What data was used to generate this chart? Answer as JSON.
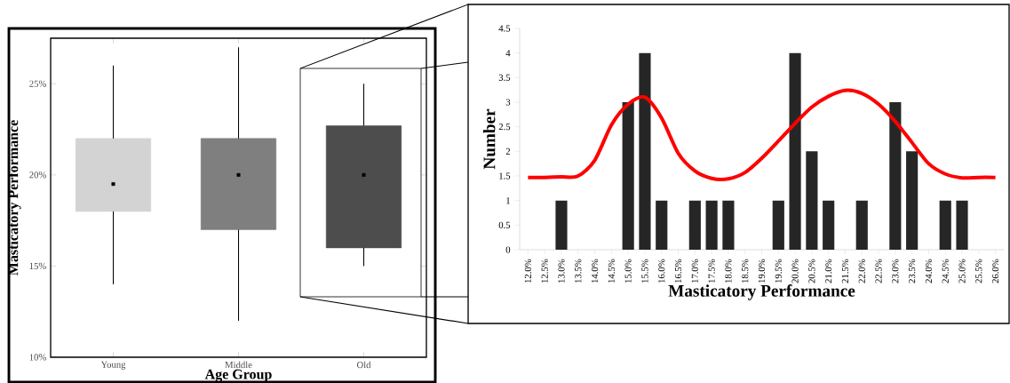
{
  "chart_data": [
    {
      "type": "box",
      "xlabel": "Age Group",
      "ylabel": "Masticatory Performance",
      "categories": [
        "Young",
        "Middle",
        "Old"
      ],
      "colors": [
        "#d3d3d3",
        "#7f7f7f",
        "#4d4d4d"
      ],
      "boxes": [
        {
          "low": 14,
          "q1": 18,
          "median": 19.5,
          "q3": 22,
          "high": 26
        },
        {
          "low": 12,
          "q1": 17,
          "median": 20,
          "q3": 22,
          "high": 27
        },
        {
          "low": 15,
          "q1": 16,
          "median": 20,
          "q3": 22.7,
          "high": 25
        }
      ],
      "ylim": [
        10,
        27.5
      ],
      "yticks": [
        {
          "value": 10,
          "label": "10%"
        },
        {
          "value": 15,
          "label": "15%"
        },
        {
          "value": 20,
          "label": "20%"
        },
        {
          "value": 25,
          "label": "25%"
        }
      ]
    },
    {
      "type": "bar",
      "xlabel": "Masticatory Performance",
      "ylabel": "Number",
      "categories": [
        "12.0%",
        "12.5%",
        "13.0%",
        "13.5%",
        "14.0%",
        "14.5%",
        "15.0%",
        "15.5%",
        "16.0%",
        "16.5%",
        "17.0%",
        "17.5%",
        "18.0%",
        "18.5%",
        "19.0%",
        "19.5%",
        "20.0%",
        "20.5%",
        "21.0%",
        "21.5%",
        "22.0%",
        "22.5%",
        "23.0%",
        "23.5%",
        "24.0%",
        "24.5%",
        "25.0%",
        "25.5%",
        "26.0%"
      ],
      "series": [
        {
          "type": "bar",
          "color": "#262626",
          "values": [
            0,
            0,
            1,
            0,
            0,
            0,
            3,
            4,
            1,
            0,
            1,
            1,
            1,
            0,
            0,
            1,
            4,
            2,
            1,
            0,
            1,
            0,
            3,
            2,
            0,
            1,
            1,
            0,
            0
          ]
        },
        {
          "type": "line",
          "color": "#ff0000",
          "values": [
            1.47,
            1.47,
            1.48,
            1.5,
            1.82,
            2.54,
            2.96,
            3.1,
            2.68,
            1.96,
            1.6,
            1.45,
            1.44,
            1.57,
            1.86,
            2.21,
            2.57,
            2.9,
            3.12,
            3.24,
            3.18,
            2.96,
            2.61,
            2.18,
            1.75,
            1.54,
            1.46,
            1.47,
            1.47
          ]
        }
      ],
      "ylim": [
        0,
        4.5
      ],
      "yticks": [
        0,
        0.5,
        1,
        1.5,
        2,
        2.5,
        3,
        3.5,
        4,
        4.5
      ]
    }
  ]
}
